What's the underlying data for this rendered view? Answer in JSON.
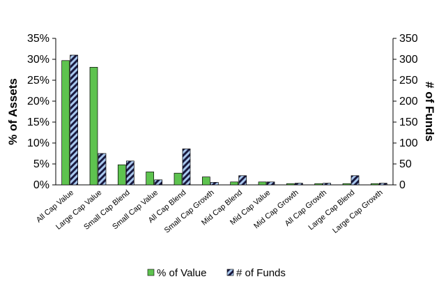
{
  "chart_data": {
    "type": "bar",
    "categories": [
      "All Cap Value",
      "Large Cap Value",
      "Small Cap Blend",
      "Small Cap Value",
      "All Cap Blend",
      "Small Cap Growth",
      "Mid Cap Blend",
      "Mid Cap Value",
      "Mid Cap Growth",
      "All Cap Growth",
      "Large Cap Blend",
      "Large Cap Growth"
    ],
    "series": [
      {
        "name": "% of Value",
        "axis": "left",
        "values": [
          29.7,
          28.1,
          4.8,
          3.1,
          2.8,
          1.9,
          0.7,
          0.7,
          0.3,
          0.3,
          0.3,
          0.3
        ],
        "color": "#5ec34f",
        "pattern": "solid"
      },
      {
        "name": "# of Funds",
        "axis": "right",
        "values": [
          310,
          75,
          57,
          12,
          86,
          6,
          22,
          7,
          4,
          4,
          22,
          4
        ],
        "color": "#7aa7e0",
        "pattern": "diagonal-stripe-dark"
      }
    ],
    "ylabel": "% of Assets",
    "y2label": "# of Funds",
    "ylim": [
      0,
      35
    ],
    "y2lim": [
      0,
      350
    ],
    "yticks": [
      "0%",
      "5%",
      "10%",
      "15%",
      "20%",
      "25%",
      "30%",
      "35%"
    ],
    "y2ticks": [
      "0",
      "50",
      "100",
      "150",
      "200",
      "250",
      "300",
      "350"
    ],
    "legend_position": "bottom",
    "grid": false
  }
}
